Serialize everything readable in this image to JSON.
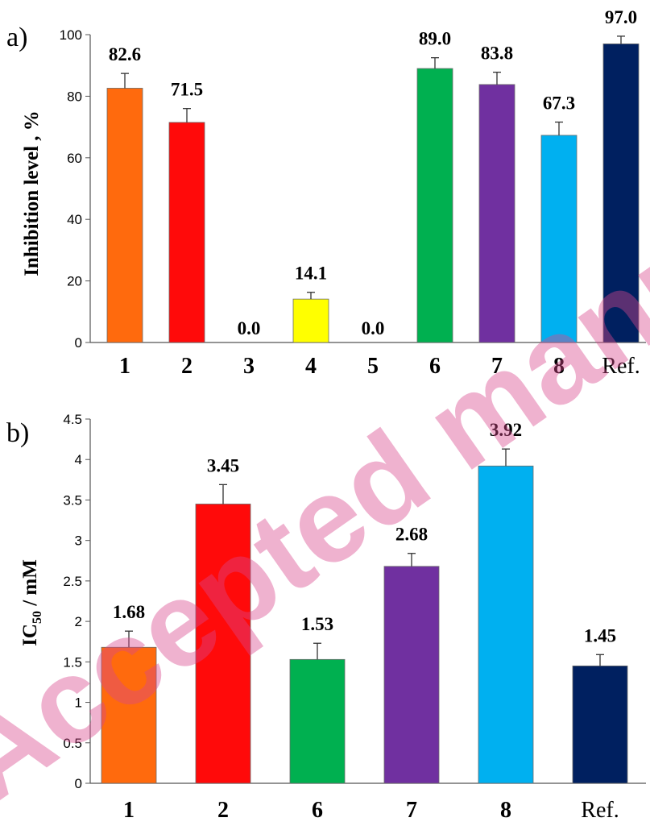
{
  "watermark": "Accepted manuscript",
  "chart_data": [
    {
      "type": "bar",
      "panel_label": "a)",
      "ylabel": "Inhibition level ,  %",
      "ylim": [
        0,
        100
      ],
      "yticks": [
        "0",
        "20",
        "40",
        "60",
        "80",
        "100"
      ],
      "categories": [
        "1",
        "2",
        "3",
        "4",
        "5",
        "6",
        "7",
        "8",
        "Ref."
      ],
      "values": [
        82.6,
        71.5,
        0.0,
        14.1,
        0.0,
        89.0,
        83.8,
        67.3,
        97.0
      ],
      "errors": [
        4.8,
        4.5,
        0,
        2.2,
        0,
        3.5,
        4.0,
        4.3,
        2.5
      ],
      "value_labels": [
        "82.6",
        "71.5",
        "0.0",
        "14.1",
        "0.0",
        "89.0",
        "83.8",
        "67.3",
        "97.0"
      ],
      "colors": [
        "#FF6A0D",
        "#FF0A0A",
        "#FF0A0A",
        "#FFFF00",
        "#FFFF00",
        "#00B050",
        "#7030A0",
        "#00B0F0",
        "#002060"
      ],
      "grid": false
    },
    {
      "type": "bar",
      "panel_label": "b)",
      "ylabel": "IC50 / mM",
      "ylim": [
        0,
        4.5
      ],
      "yticks": [
        "0",
        "0.5",
        "1",
        "1.5",
        "2",
        "2.5",
        "3",
        "3.5",
        "4",
        "4.5"
      ],
      "categories": [
        "1",
        "2",
        "6",
        "7",
        "8",
        "Ref."
      ],
      "values": [
        1.68,
        3.45,
        1.53,
        2.68,
        3.92,
        1.45
      ],
      "errors": [
        0.2,
        0.24,
        0.2,
        0.16,
        0.21,
        0.14
      ],
      "value_labels": [
        "1.68",
        "3.45",
        "1.53",
        "2.68",
        "3.92",
        "1.45"
      ],
      "colors": [
        "#FF6A0D",
        "#FF0A0A",
        "#00B050",
        "#7030A0",
        "#00B0F0",
        "#002060"
      ],
      "grid": false
    }
  ]
}
